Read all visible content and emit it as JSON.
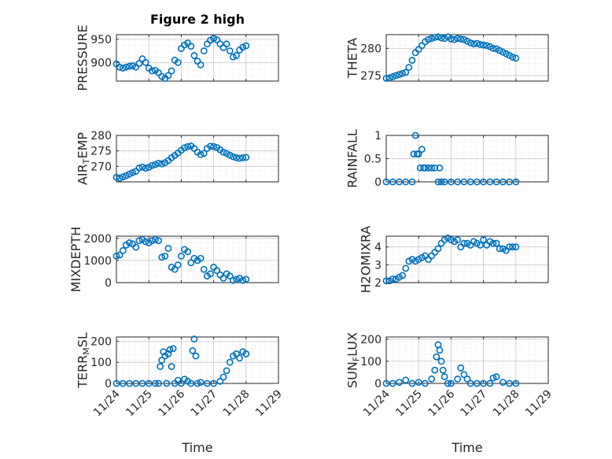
{
  "title": "Figure 2 high",
  "marker_color": "#0072bd",
  "grid": "dotted",
  "xticks": [
    "11/24",
    "11/25",
    "11/26",
    "11/27",
    "11/28",
    "11/29"
  ],
  "xlabel": "Time",
  "chart_data": [
    {
      "type": "scatter",
      "ylabel": "PRESSURE",
      "ylim": [
        860,
        960
      ],
      "yticks": [
        900,
        950
      ],
      "x": [
        0.0,
        0.1,
        0.2,
        0.3,
        0.4,
        0.5,
        0.6,
        0.7,
        0.8,
        0.9,
        1.0,
        1.1,
        1.2,
        1.3,
        1.4,
        1.5,
        1.6,
        1.7,
        1.8,
        1.9,
        2.0,
        2.1,
        2.2,
        2.3,
        2.4,
        2.5,
        2.6,
        2.7,
        2.8,
        2.9,
        3.0,
        3.1,
        3.2,
        3.3,
        3.4,
        3.5,
        3.6,
        3.7,
        3.8,
        3.9,
        4.0
      ],
      "y": [
        897,
        890,
        888,
        890,
        892,
        893,
        890,
        898,
        908,
        900,
        888,
        882,
        883,
        878,
        870,
        866,
        872,
        882,
        905,
        900,
        930,
        938,
        942,
        935,
        915,
        903,
        895,
        925,
        940,
        948,
        952,
        949,
        940,
        932,
        940,
        925,
        912,
        915,
        927,
        933,
        936
      ]
    },
    {
      "type": "scatter",
      "ylabel": "THETA",
      "ylim": [
        274,
        282.5
      ],
      "yticks": [
        275,
        280
      ],
      "x": [
        0.0,
        0.1,
        0.2,
        0.3,
        0.4,
        0.5,
        0.6,
        0.7,
        0.8,
        0.9,
        1.0,
        1.1,
        1.2,
        1.3,
        1.4,
        1.5,
        1.6,
        1.7,
        1.8,
        1.9,
        2.0,
        2.1,
        2.2,
        2.3,
        2.4,
        2.5,
        2.6,
        2.7,
        2.8,
        2.9,
        3.0,
        3.1,
        3.2,
        3.3,
        3.4,
        3.5,
        3.6,
        3.7,
        3.8,
        3.9,
        4.0
      ],
      "y": [
        274.5,
        274.6,
        274.8,
        275.0,
        275.2,
        275.4,
        275.6,
        276.5,
        277.8,
        279.2,
        279.8,
        280.5,
        281.2,
        281.6,
        281.8,
        282.0,
        282.1,
        281.9,
        281.8,
        282.1,
        281.7,
        281.6,
        281.8,
        281.7,
        281.6,
        281.3,
        281.0,
        280.8,
        280.9,
        280.7,
        280.6,
        280.5,
        280.3,
        280.0,
        279.9,
        279.6,
        279.3,
        279.0,
        278.7,
        278.4,
        278.2
      ]
    },
    {
      "type": "scatter",
      "ylabel": "AIR_TEMP",
      "ylim": [
        265,
        280
      ],
      "yticks": [
        270,
        275,
        280
      ],
      "x": [
        0.0,
        0.1,
        0.2,
        0.3,
        0.4,
        0.5,
        0.6,
        0.7,
        0.8,
        0.9,
        1.0,
        1.1,
        1.2,
        1.3,
        1.4,
        1.5,
        1.6,
        1.7,
        1.8,
        1.9,
        2.0,
        2.1,
        2.2,
        2.3,
        2.4,
        2.5,
        2.6,
        2.7,
        2.8,
        2.9,
        3.0,
        3.1,
        3.2,
        3.3,
        3.4,
        3.5,
        3.6,
        3.7,
        3.8,
        3.9,
        4.0
      ],
      "y": [
        266.5,
        266.2,
        266.6,
        267.0,
        267.5,
        268.0,
        268.4,
        269.5,
        269.8,
        269.4,
        269.7,
        270.3,
        270.6,
        271.0,
        270.8,
        271.2,
        271.9,
        272.8,
        273.5,
        274.3,
        275.2,
        276.0,
        276.4,
        276.6,
        275.8,
        274.6,
        273.8,
        274.2,
        275.8,
        276.5,
        276.4,
        276.1,
        275.4,
        274.6,
        274.2,
        273.6,
        273.1,
        272.8,
        272.6,
        272.8,
        272.9
      ]
    },
    {
      "type": "scatter",
      "ylabel": "RAINFALL",
      "ylim": [
        0,
        1
      ],
      "yticks": [
        0,
        0.5,
        1
      ],
      "x": [
        0.0,
        0.2,
        0.4,
        0.6,
        0.8,
        0.85,
        0.9,
        0.95,
        1.0,
        1.05,
        1.1,
        1.15,
        1.2,
        1.3,
        1.4,
        1.5,
        1.6,
        1.65,
        1.7,
        1.8,
        2.0,
        2.2,
        2.4,
        2.6,
        2.8,
        3.0,
        3.2,
        3.4,
        3.6,
        3.8,
        4.0
      ],
      "y": [
        0,
        0,
        0,
        0,
        0,
        0.6,
        1.0,
        0.6,
        0.6,
        0.3,
        0.7,
        0.3,
        0.3,
        0.3,
        0.3,
        0.3,
        0,
        0.3,
        0,
        0,
        0,
        0,
        0,
        0,
        0,
        0,
        0,
        0,
        0,
        0,
        0
      ]
    },
    {
      "type": "scatter",
      "ylabel": "MIXDEPTH",
      "ylim": [
        0,
        2100
      ],
      "yticks": [
        0,
        1000,
        2000
      ],
      "x": [
        0.0,
        0.1,
        0.2,
        0.3,
        0.4,
        0.5,
        0.6,
        0.7,
        0.8,
        0.9,
        1.0,
        1.1,
        1.2,
        1.3,
        1.4,
        1.5,
        1.6,
        1.7,
        1.8,
        1.9,
        2.0,
        2.1,
        2.2,
        2.3,
        2.4,
        2.5,
        2.6,
        2.7,
        2.8,
        2.9,
        3.0,
        3.1,
        3.2,
        3.3,
        3.4,
        3.5,
        3.6,
        3.7,
        3.8,
        3.9,
        4.0
      ],
      "y": [
        1200,
        1250,
        1450,
        1700,
        1800,
        1750,
        1600,
        1900,
        1950,
        1850,
        1800,
        1900,
        1950,
        1900,
        1150,
        1200,
        1550,
        700,
        600,
        800,
        1200,
        1500,
        1400,
        900,
        1100,
        1000,
        1100,
        600,
        300,
        400,
        700,
        550,
        350,
        200,
        400,
        300,
        100,
        150,
        200,
        100,
        150
      ]
    },
    {
      "type": "scatter",
      "ylabel": "H2OMIXRA",
      "ylim": [
        2,
        4.6
      ],
      "yticks": [
        2,
        3,
        4
      ],
      "x": [
        0.0,
        0.1,
        0.2,
        0.3,
        0.4,
        0.5,
        0.6,
        0.7,
        0.8,
        0.9,
        1.0,
        1.1,
        1.2,
        1.3,
        1.4,
        1.5,
        1.6,
        1.7,
        1.8,
        1.9,
        2.0,
        2.1,
        2.2,
        2.3,
        2.4,
        2.5,
        2.6,
        2.7,
        2.8,
        2.9,
        3.0,
        3.1,
        3.2,
        3.3,
        3.4,
        3.5,
        3.6,
        3.7,
        3.8,
        3.9,
        4.0
      ],
      "y": [
        2.1,
        2.1,
        2.2,
        2.2,
        2.3,
        2.4,
        2.8,
        3.2,
        3.3,
        3.2,
        3.3,
        3.4,
        3.5,
        3.3,
        3.5,
        3.7,
        3.9,
        4.2,
        4.4,
        4.5,
        4.4,
        4.3,
        4.4,
        4.0,
        4.2,
        4.2,
        4.1,
        4.3,
        4.2,
        4.1,
        4.4,
        4.1,
        4.3,
        4.2,
        4.2,
        3.9,
        3.9,
        3.8,
        4.0,
        4.0,
        4.0
      ]
    },
    {
      "type": "scatter",
      "ylabel": "TERR_MSL",
      "ylim": [
        0,
        220
      ],
      "yticks": [
        0,
        100,
        200
      ],
      "x": [
        0.0,
        0.2,
        0.4,
        0.6,
        0.8,
        1.0,
        1.2,
        1.3,
        1.35,
        1.4,
        1.45,
        1.5,
        1.55,
        1.6,
        1.65,
        1.7,
        1.75,
        1.8,
        1.9,
        2.0,
        2.1,
        2.2,
        2.3,
        2.35,
        2.4,
        2.45,
        2.5,
        2.6,
        2.8,
        3.0,
        3.2,
        3.3,
        3.4,
        3.5,
        3.6,
        3.7,
        3.8,
        3.9,
        4.0
      ],
      "y": [
        0,
        0,
        0,
        0,
        0,
        0,
        0,
        0,
        80,
        110,
        150,
        130,
        0,
        140,
        160,
        80,
        165,
        0,
        15,
        0,
        20,
        10,
        0,
        155,
        210,
        130,
        0,
        5,
        0,
        0,
        10,
        30,
        60,
        100,
        130,
        140,
        120,
        150,
        140
      ]
    },
    {
      "type": "scatter",
      "ylabel": "SUN_FLUX",
      "ylim": [
        0,
        210
      ],
      "yticks": [
        0,
        100,
        200
      ],
      "x": [
        0.0,
        0.2,
        0.4,
        0.6,
        0.8,
        1.0,
        1.2,
        1.4,
        1.5,
        1.55,
        1.6,
        1.65,
        1.7,
        1.75,
        1.8,
        1.9,
        2.0,
        2.2,
        2.3,
        2.4,
        2.5,
        2.6,
        2.8,
        3.0,
        3.2,
        3.3,
        3.4,
        3.6,
        3.8,
        4.0
      ],
      "y": [
        0,
        0,
        5,
        15,
        0,
        5,
        0,
        20,
        60,
        120,
        175,
        150,
        100,
        60,
        30,
        0,
        0,
        20,
        70,
        40,
        20,
        0,
        0,
        0,
        0,
        25,
        30,
        5,
        0,
        0
      ]
    }
  ]
}
